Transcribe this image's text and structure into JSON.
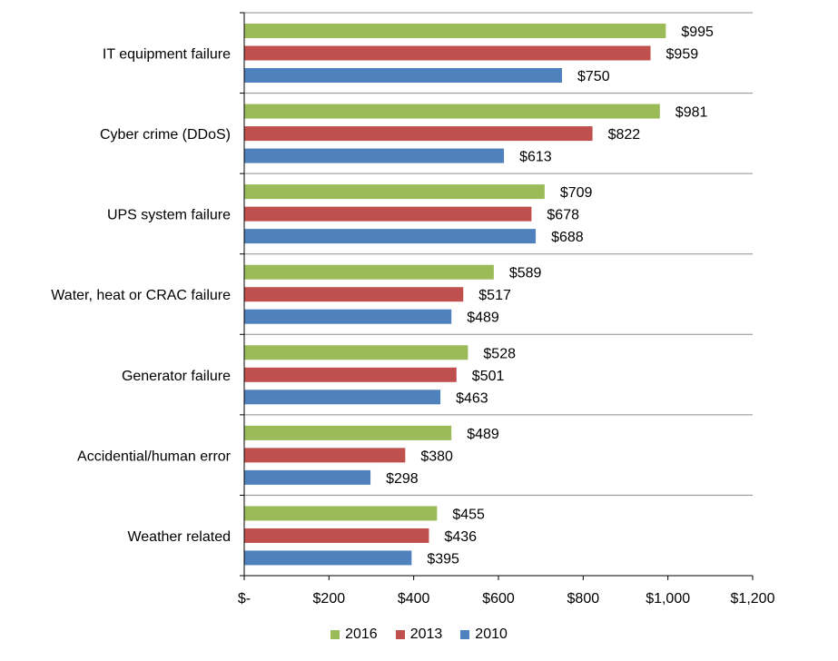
{
  "chart_data": {
    "type": "bar",
    "orientation": "horizontal",
    "categories": [
      "IT equipment failure",
      "Cyber crime (DDoS)",
      "UPS system failure",
      "Water, heat or CRAC failure",
      "Generator failure",
      "Accidential/human error",
      "Weather related"
    ],
    "series": [
      {
        "name": "2016",
        "color": "#9BBB59",
        "values": [
          995,
          981,
          709,
          589,
          528,
          489,
          455
        ],
        "labels": [
          "$995",
          "$981",
          "$709",
          "$589",
          "$528",
          "$489",
          "$455"
        ]
      },
      {
        "name": "2013",
        "color": "#C0504D",
        "values": [
          959,
          822,
          678,
          517,
          501,
          380,
          436
        ],
        "labels": [
          "$959",
          "$822",
          "$678",
          "$517",
          "$501",
          "$380",
          "$436"
        ]
      },
      {
        "name": "2010",
        "color": "#4F81BD",
        "values": [
          750,
          613,
          688,
          489,
          463,
          298,
          395
        ],
        "labels": [
          "$750",
          "$613",
          "$688",
          "$489",
          "$463",
          "$298",
          "$395"
        ]
      }
    ],
    "x_ticks": [
      0,
      200,
      400,
      600,
      800,
      1000,
      1200
    ],
    "x_tick_labels": [
      "$-",
      "$200",
      "$400",
      "$600",
      "$800",
      "$1,000",
      "$1,200"
    ],
    "xlim": [
      0,
      1200
    ],
    "legend_position": "bottom",
    "grid": "horizontal separators between categories",
    "title": "",
    "xlabel": "",
    "ylabel": ""
  }
}
